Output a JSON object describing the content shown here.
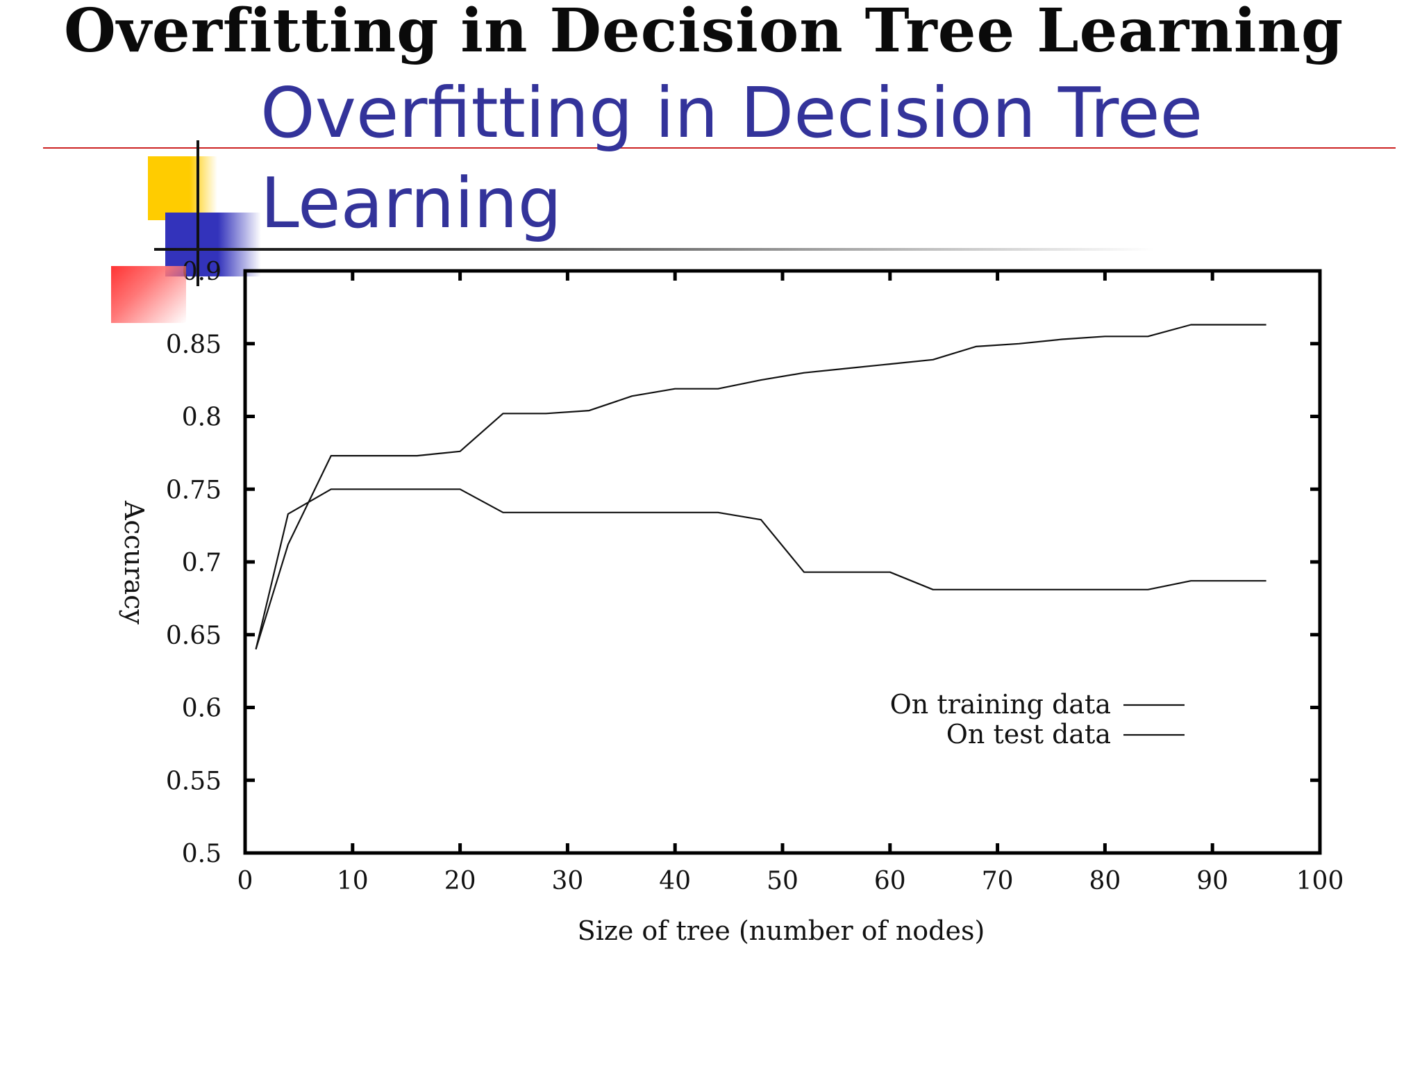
{
  "slide": {
    "ghost_title": "Overfitting in Decision Tree Learning",
    "title": "Overfitting in Decision Tree Learning"
  },
  "chart_data": {
    "type": "line",
    "xlabel": "Size of tree (number of nodes)",
    "ylabel": "Accuracy",
    "xlim": [
      0,
      100
    ],
    "ylim": [
      0.5,
      0.9
    ],
    "x_ticks": [
      "0",
      "10",
      "20",
      "30",
      "40",
      "50",
      "60",
      "70",
      "80",
      "90",
      "100"
    ],
    "y_ticks": [
      "0.5",
      "0.55",
      "0.6",
      "0.65",
      "0.7",
      "0.75",
      "0.8",
      "0.85",
      "0.9"
    ],
    "grid": false,
    "legend_position": "lower-right",
    "series": [
      {
        "name": "On training data",
        "color": "#111111",
        "points": [
          [
            1,
            0.64
          ],
          [
            4,
            0.712
          ],
          [
            8,
            0.773
          ],
          [
            12,
            0.773
          ],
          [
            16,
            0.773
          ],
          [
            20,
            0.776
          ],
          [
            24,
            0.802
          ],
          [
            28,
            0.802
          ],
          [
            32,
            0.804
          ],
          [
            36,
            0.814
          ],
          [
            40,
            0.819
          ],
          [
            44,
            0.819
          ],
          [
            48,
            0.825
          ],
          [
            52,
            0.83
          ],
          [
            56,
            0.833
          ],
          [
            60,
            0.836
          ],
          [
            64,
            0.839
          ],
          [
            68,
            0.848
          ],
          [
            72,
            0.85
          ],
          [
            76,
            0.853
          ],
          [
            80,
            0.855
          ],
          [
            84,
            0.855
          ],
          [
            88,
            0.863
          ],
          [
            92,
            0.863
          ],
          [
            95,
            0.863
          ]
        ]
      },
      {
        "name": "On test data",
        "color": "#111111",
        "points": [
          [
            1,
            0.64
          ],
          [
            4,
            0.733
          ],
          [
            8,
            0.75
          ],
          [
            12,
            0.75
          ],
          [
            16,
            0.75
          ],
          [
            20,
            0.75
          ],
          [
            24,
            0.734
          ],
          [
            28,
            0.734
          ],
          [
            32,
            0.734
          ],
          [
            36,
            0.734
          ],
          [
            40,
            0.734
          ],
          [
            44,
            0.734
          ],
          [
            48,
            0.729
          ],
          [
            52,
            0.693
          ],
          [
            56,
            0.693
          ],
          [
            60,
            0.693
          ],
          [
            64,
            0.681
          ],
          [
            68,
            0.681
          ],
          [
            72,
            0.681
          ],
          [
            76,
            0.681
          ],
          [
            80,
            0.681
          ],
          [
            84,
            0.681
          ],
          [
            88,
            0.687
          ],
          [
            92,
            0.687
          ],
          [
            95,
            0.687
          ]
        ]
      }
    ]
  }
}
